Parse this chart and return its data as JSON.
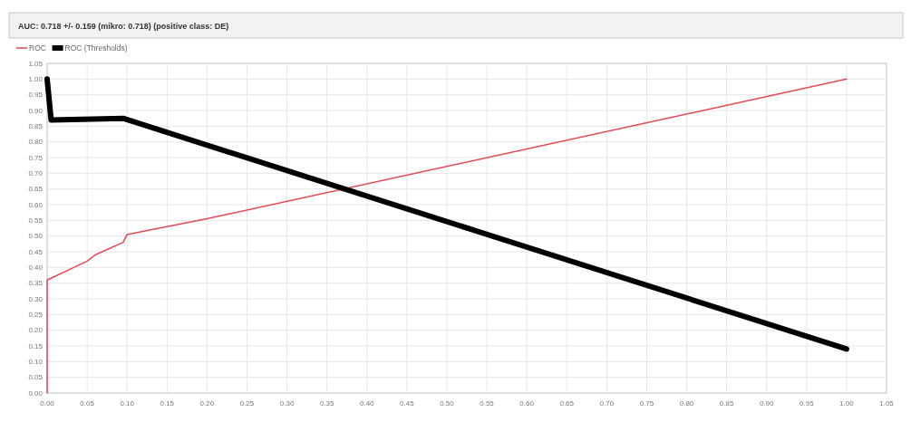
{
  "chart_data": {
    "type": "line",
    "title": "AUC: 0.718 +/- 0.159 (mikro: 0.718) (positive class: DE)",
    "series": [
      {
        "name": "ROC",
        "color": "#e8474f",
        "x": [
          0,
          0,
          0.05,
          0.06,
          0.095,
          0.097,
          0.1,
          0.2,
          1.0
        ],
        "values": [
          0,
          0.36,
          0.42,
          0.44,
          0.48,
          0.49,
          0.505,
          0.555,
          1.0
        ]
      },
      {
        "name": "ROC (Thresholds)",
        "color": "#000000",
        "x": [
          0,
          0.005,
          0.095,
          1.0
        ],
        "values": [
          1.0,
          0.87,
          0.875,
          0.14
        ]
      }
    ],
    "xlim": [
      0,
      1.05
    ],
    "ylim": [
      0,
      1.05
    ],
    "xticks": [
      {
        "value": 0,
        "label": "0.00"
      },
      {
        "value": 0.05,
        "label": "0.05"
      },
      {
        "value": 0.1,
        "label": "0.10"
      },
      {
        "value": 0.15,
        "label": "0.15"
      },
      {
        "value": 0.2,
        "label": "0.20"
      },
      {
        "value": 0.25,
        "label": "0.25"
      },
      {
        "value": 0.3,
        "label": "0.30"
      },
      {
        "value": 0.35,
        "label": "0.35"
      },
      {
        "value": 0.4,
        "label": "0.40"
      },
      {
        "value": 0.45,
        "label": "0.45"
      },
      {
        "value": 0.5,
        "label": "0.50"
      },
      {
        "value": 0.55,
        "label": "0.55"
      },
      {
        "value": 0.6,
        "label": "0.60"
      },
      {
        "value": 0.65,
        "label": "0.65"
      },
      {
        "value": 0.7,
        "label": "0.70"
      },
      {
        "value": 0.75,
        "label": "0.75"
      },
      {
        "value": 0.8,
        "label": "0.80"
      },
      {
        "value": 0.85,
        "label": "0.85"
      },
      {
        "value": 0.9,
        "label": "0.90"
      },
      {
        "value": 0.95,
        "label": "0.95"
      },
      {
        "value": 1,
        "label": "1.00"
      },
      {
        "value": 1.05,
        "label": "1.05"
      }
    ],
    "yticks": [
      {
        "value": 0,
        "label": "0.00"
      },
      {
        "value": 0.05,
        "label": "0.05"
      },
      {
        "value": 0.1,
        "label": "0.10"
      },
      {
        "value": 0.15,
        "label": "0.15"
      },
      {
        "value": 0.2,
        "label": "0.20"
      },
      {
        "value": 0.25,
        "label": "0.25"
      },
      {
        "value": 0.3,
        "label": "0.30"
      },
      {
        "value": 0.35,
        "label": "0.35"
      },
      {
        "value": 0.4,
        "label": "0.40"
      },
      {
        "value": 0.45,
        "label": "0.45"
      },
      {
        "value": 0.5,
        "label": "0.50"
      },
      {
        "value": 0.55,
        "label": "0.55"
      },
      {
        "value": 0.6,
        "label": "0.60"
      },
      {
        "value": 0.65,
        "label": "0.65"
      },
      {
        "value": 0.7,
        "label": "0.70"
      },
      {
        "value": 0.75,
        "label": "0.75"
      },
      {
        "value": 0.8,
        "label": "0.80"
      },
      {
        "value": 0.85,
        "label": "0.85"
      },
      {
        "value": 0.9,
        "label": "0.90"
      },
      {
        "value": 0.95,
        "label": "0.95"
      },
      {
        "value": 1,
        "label": "1.00"
      },
      {
        "value": 1.05,
        "label": "1.05"
      }
    ],
    "grid": true,
    "legend": "top left",
    "marker": "none"
  }
}
